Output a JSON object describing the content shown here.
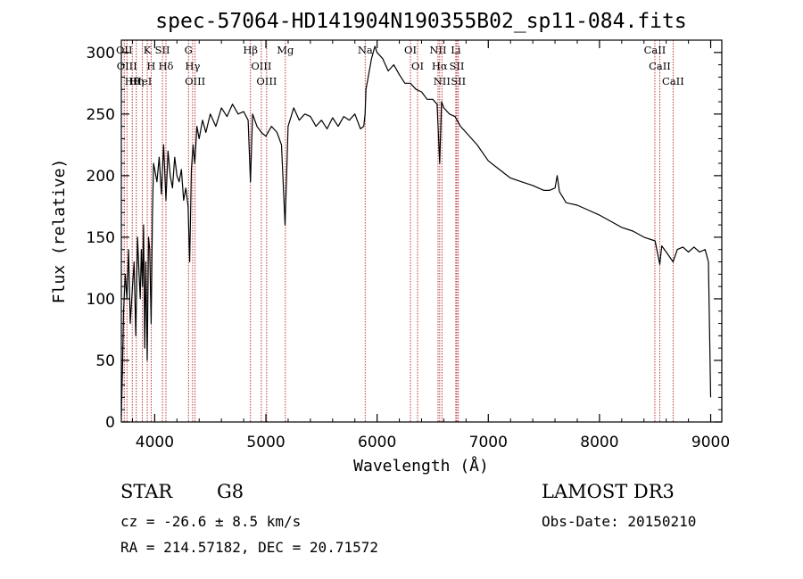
{
  "chart_data": {
    "type": "line",
    "title": "spec-57064-HD141904N190355B02_sp11-084.fits",
    "xlabel": "Wavelength (Å)",
    "ylabel": "Flux (relative)",
    "xlim": [
      3700,
      9100
    ],
    "ylim": [
      0,
      310
    ],
    "xticks": [
      4000,
      5000,
      6000,
      7000,
      8000,
      9000
    ],
    "xtick_labels": [
      "4000",
      "5000",
      "6000",
      "7000",
      "8000",
      "9000"
    ],
    "yticks": [
      0,
      50,
      100,
      150,
      200,
      250,
      300
    ],
    "ytick_labels": [
      "0",
      "50",
      "100",
      "150",
      "200",
      "250",
      "300"
    ],
    "series": [
      {
        "name": "spectrum",
        "x": [
          3700,
          3710,
          3720,
          3735,
          3750,
          3765,
          3780,
          3800,
          3815,
          3830,
          3845,
          3860,
          3870,
          3880,
          3890,
          3900,
          3910,
          3920,
          3933,
          3945,
          3955,
          3968,
          3980,
          3990,
          4000,
          4020,
          4040,
          4060,
          4080,
          4101,
          4120,
          4140,
          4160,
          4180,
          4200,
          4220,
          4240,
          4260,
          4280,
          4300,
          4315,
          4330,
          4345,
          4360,
          4380,
          4400,
          4430,
          4460,
          4500,
          4550,
          4600,
          4650,
          4700,
          4750,
          4800,
          4840,
          4861,
          4880,
          4920,
          4960,
          5000,
          5050,
          5100,
          5140,
          5172,
          5200,
          5250,
          5300,
          5350,
          5400,
          5450,
          5500,
          5550,
          5600,
          5650,
          5700,
          5750,
          5800,
          5850,
          5880,
          5892,
          5900,
          5920,
          5950,
          5980,
          6000,
          6050,
          6100,
          6150,
          6200,
          6250,
          6300,
          6350,
          6400,
          6450,
          6500,
          6540,
          6563,
          6580,
          6600,
          6650,
          6700,
          6750,
          6800,
          6900,
          7000,
          7100,
          7200,
          7300,
          7400,
          7500,
          7550,
          7600,
          7620,
          7640,
          7700,
          7800,
          7900,
          8000,
          8100,
          8200,
          8300,
          8400,
          8500,
          8542,
          8560,
          8600,
          8662,
          8700,
          8750,
          8800,
          8850,
          8900,
          8950,
          8980,
          9000
        ],
        "values": [
          5,
          40,
          90,
          120,
          100,
          140,
          80,
          110,
          130,
          70,
          150,
          120,
          100,
          140,
          110,
          160,
          60,
          130,
          50,
          150,
          140,
          80,
          170,
          210,
          205,
          195,
          215,
          185,
          225,
          180,
          220,
          200,
          190,
          215,
          200,
          195,
          205,
          180,
          190,
          175,
          130,
          205,
          225,
          210,
          240,
          230,
          245,
          235,
          250,
          240,
          255,
          248,
          258,
          250,
          252,
          245,
          195,
          250,
          240,
          235,
          232,
          240,
          235,
          225,
          160,
          240,
          255,
          245,
          250,
          248,
          240,
          245,
          238,
          247,
          240,
          248,
          245,
          250,
          238,
          240,
          250,
          270,
          280,
          295,
          305,
          300,
          295,
          285,
          290,
          282,
          275,
          275,
          270,
          268,
          262,
          262,
          258,
          210,
          260,
          255,
          250,
          248,
          240,
          235,
          225,
          212,
          205,
          198,
          195,
          192,
          188,
          188,
          190,
          200,
          187,
          178,
          176,
          172,
          168,
          163,
          158,
          155,
          150,
          147,
          128,
          143,
          138,
          130,
          140,
          142,
          138,
          142,
          138,
          140,
          130,
          20
        ]
      }
    ],
    "line_markers": [
      {
        "wavelength": 3726,
        "label": "OII"
      },
      {
        "wavelength": 3750,
        "label": "OIII"
      },
      {
        "wavelength": 3798,
        "label": "Hθ"
      },
      {
        "wavelength": 3835,
        "label": "Hη"
      },
      {
        "wavelength": 3889,
        "label": "HeI"
      },
      {
        "wavelength": 3933,
        "label": "K"
      },
      {
        "wavelength": 3968,
        "label": "H"
      },
      {
        "wavelength": 4070,
        "label": "SII"
      },
      {
        "wavelength": 4101,
        "label": "Hδ"
      },
      {
        "wavelength": 4304,
        "label": "G"
      },
      {
        "wavelength": 4341,
        "label": "Hγ"
      },
      {
        "wavelength": 4363,
        "label": "OIII"
      },
      {
        "wavelength": 4861,
        "label": "Hβ"
      },
      {
        "wavelength": 4959,
        "label": "OIII"
      },
      {
        "wavelength": 5007,
        "label": "OIII"
      },
      {
        "wavelength": 5175,
        "label": "Mg"
      },
      {
        "wavelength": 5893,
        "label": "Na"
      },
      {
        "wavelength": 6300,
        "label": "OI"
      },
      {
        "wavelength": 6364,
        "label": "OI"
      },
      {
        "wavelength": 6548,
        "label": "NII"
      },
      {
        "wavelength": 6563,
        "label": "Hα"
      },
      {
        "wavelength": 6583,
        "label": "NII"
      },
      {
        "wavelength": 6708,
        "label": "Li"
      },
      {
        "wavelength": 6717,
        "label": "SII"
      },
      {
        "wavelength": 6731,
        "label": "SII"
      },
      {
        "wavelength": 8498,
        "label": "CaII"
      },
      {
        "wavelength": 8542,
        "label": "CaII"
      },
      {
        "wavelength": 8662,
        "label": "CaII"
      }
    ]
  },
  "info": {
    "object_class": "STAR",
    "subclass": "G8",
    "survey": "LAMOST DR3",
    "redshift": "cz = -26.6 ± 8.5 km/s",
    "obs_date": "Obs-Date: 20150210",
    "coords": "RA = 214.57182, DEC =  20.71572"
  },
  "colors": {
    "spectrum": "#000000",
    "line_marker": "#b22222",
    "axes": "#000000"
  }
}
